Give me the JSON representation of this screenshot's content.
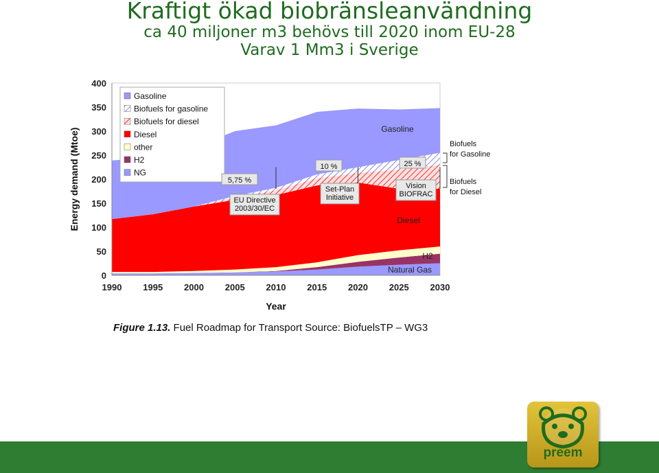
{
  "slide": {
    "title": "Kraftigt ökad biobränsleanvändning",
    "subtitle1": "ca 40 miljoner m3 behövs till 2020 inom EU-28",
    "subtitle2": "Varav 1 Mm3 i Sverige"
  },
  "caption": {
    "figure": "Figure 1.13.",
    "text": "Fuel Roadmap for Transport Source: BiofuelsTP – WG3"
  },
  "logo": {
    "text": "preem",
    "icon": "bear-icon"
  },
  "colors": {
    "title": "#1f6b1f",
    "footer": "#2e7d32",
    "gasoline": "#9999ff",
    "biofuels_gasoline": "#ffffff",
    "biofuels_diesel": "#ffd0d0",
    "diesel": "#ff0000",
    "other": "#ffffcc",
    "h2": "#993366",
    "ng": "#9999ff"
  },
  "chart_data": {
    "type": "area",
    "stacked": true,
    "xlabel": "Year",
    "ylabel": "Energy demand (Mtoe)",
    "ylim": [
      0,
      400
    ],
    "yticks": [
      0,
      50,
      100,
      150,
      200,
      250,
      300,
      350,
      400
    ],
    "x": [
      1990,
      1995,
      2000,
      2005,
      2010,
      2015,
      2020,
      2025,
      2030
    ],
    "grid": false,
    "legend_position": "top-left",
    "legend": [
      "Gasoline",
      "Biofuels for gasoline",
      "Biofuels for diesel",
      "Diesel",
      "other",
      "H2",
      "NG"
    ],
    "series": [
      {
        "name": "NG",
        "values": [
          4,
          4,
          5,
          6,
          8,
          12,
          18,
          22,
          25
        ]
      },
      {
        "name": "H2",
        "values": [
          0,
          0,
          0,
          0,
          1,
          5,
          10,
          15,
          20
        ]
      },
      {
        "name": "other",
        "values": [
          3,
          3,
          4,
          6,
          8,
          10,
          14,
          15,
          15
        ]
      },
      {
        "name": "Diesel",
        "values": [
          110,
          120,
          134,
          145,
          150,
          160,
          151,
          128,
          120
        ]
      },
      {
        "name": "Biofuels for diesel",
        "values": [
          0,
          0,
          0,
          5,
          10,
          15,
          20,
          40,
          50
        ]
      },
      {
        "name": "Biofuels for gasoline",
        "values": [
          0,
          0,
          0,
          3,
          5,
          8,
          12,
          20,
          25
        ]
      },
      {
        "name": "Gasoline",
        "values": [
          122,
          118,
          123,
          135,
          130,
          130,
          122,
          105,
          93
        ]
      }
    ],
    "area_labels": [
      "Gasoline",
      "Diesel",
      "H2",
      "Natural Gas"
    ],
    "annotations": [
      {
        "label": "5,75 %",
        "text": [
          "EU Directive",
          "2003/30/EC"
        ],
        "x": 2010
      },
      {
        "label": "10 %",
        "text": [
          "Set-Plan",
          "Initiative"
        ],
        "x": 2020
      },
      {
        "label": "25 %",
        "text": [
          "Vision",
          "BIOFRAC"
        ],
        "x": 2030
      }
    ],
    "side_labels": [
      {
        "text": [
          "Biofuels",
          "for Gasoline"
        ]
      },
      {
        "text": [
          "Biofuels",
          "for Diesel"
        ]
      }
    ]
  }
}
